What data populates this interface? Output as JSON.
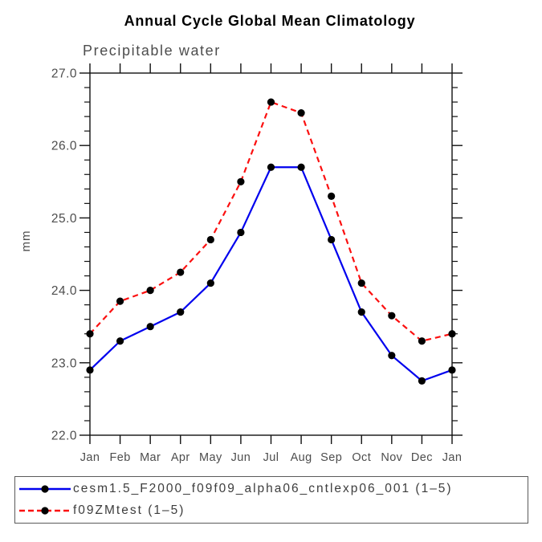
{
  "page": {
    "background": "#ffffff"
  },
  "chart_data": {
    "type": "line",
    "title": "Annual Cycle Global Mean Climatology",
    "subtitle": "Precipitable water",
    "xlabel": "",
    "ylabel": "mm",
    "ylim": [
      22.0,
      27.0
    ],
    "ytick_step": 1.0,
    "ytick_minor_step": 0.2,
    "ytick_labels": [
      "27.0",
      "26.0",
      "25.0",
      "24.0",
      "23.0",
      "22.0"
    ],
    "categories": [
      "Jan",
      "Feb",
      "Mar",
      "Apr",
      "May",
      "Jun",
      "Jul",
      "Aug",
      "Sep",
      "Oct",
      "Nov",
      "Dec",
      "Jan"
    ],
    "grid": "off",
    "legend_position": "bottom-left-box",
    "axis_color": "#111111",
    "label_color": "#4d4d4d",
    "marker": "filled-circle",
    "marker_color": "#000000",
    "series": [
      {
        "label": "cesm1.5_F2000_f09f09_alpha06_cntlexp06_001 (1–5)",
        "color": "#0000ee",
        "line_style": "solid",
        "values": [
          22.9,
          23.3,
          23.5,
          23.7,
          24.1,
          24.8,
          25.7,
          25.7,
          24.7,
          23.7,
          23.1,
          22.75,
          22.9
        ]
      },
      {
        "label": "f09ZMtest (1–5)",
        "color": "#fb1010",
        "line_style": "dashed",
        "values": [
          23.4,
          23.85,
          24.0,
          24.25,
          24.7,
          25.5,
          26.6,
          26.45,
          25.3,
          24.1,
          23.65,
          23.3,
          23.4
        ]
      }
    ]
  }
}
